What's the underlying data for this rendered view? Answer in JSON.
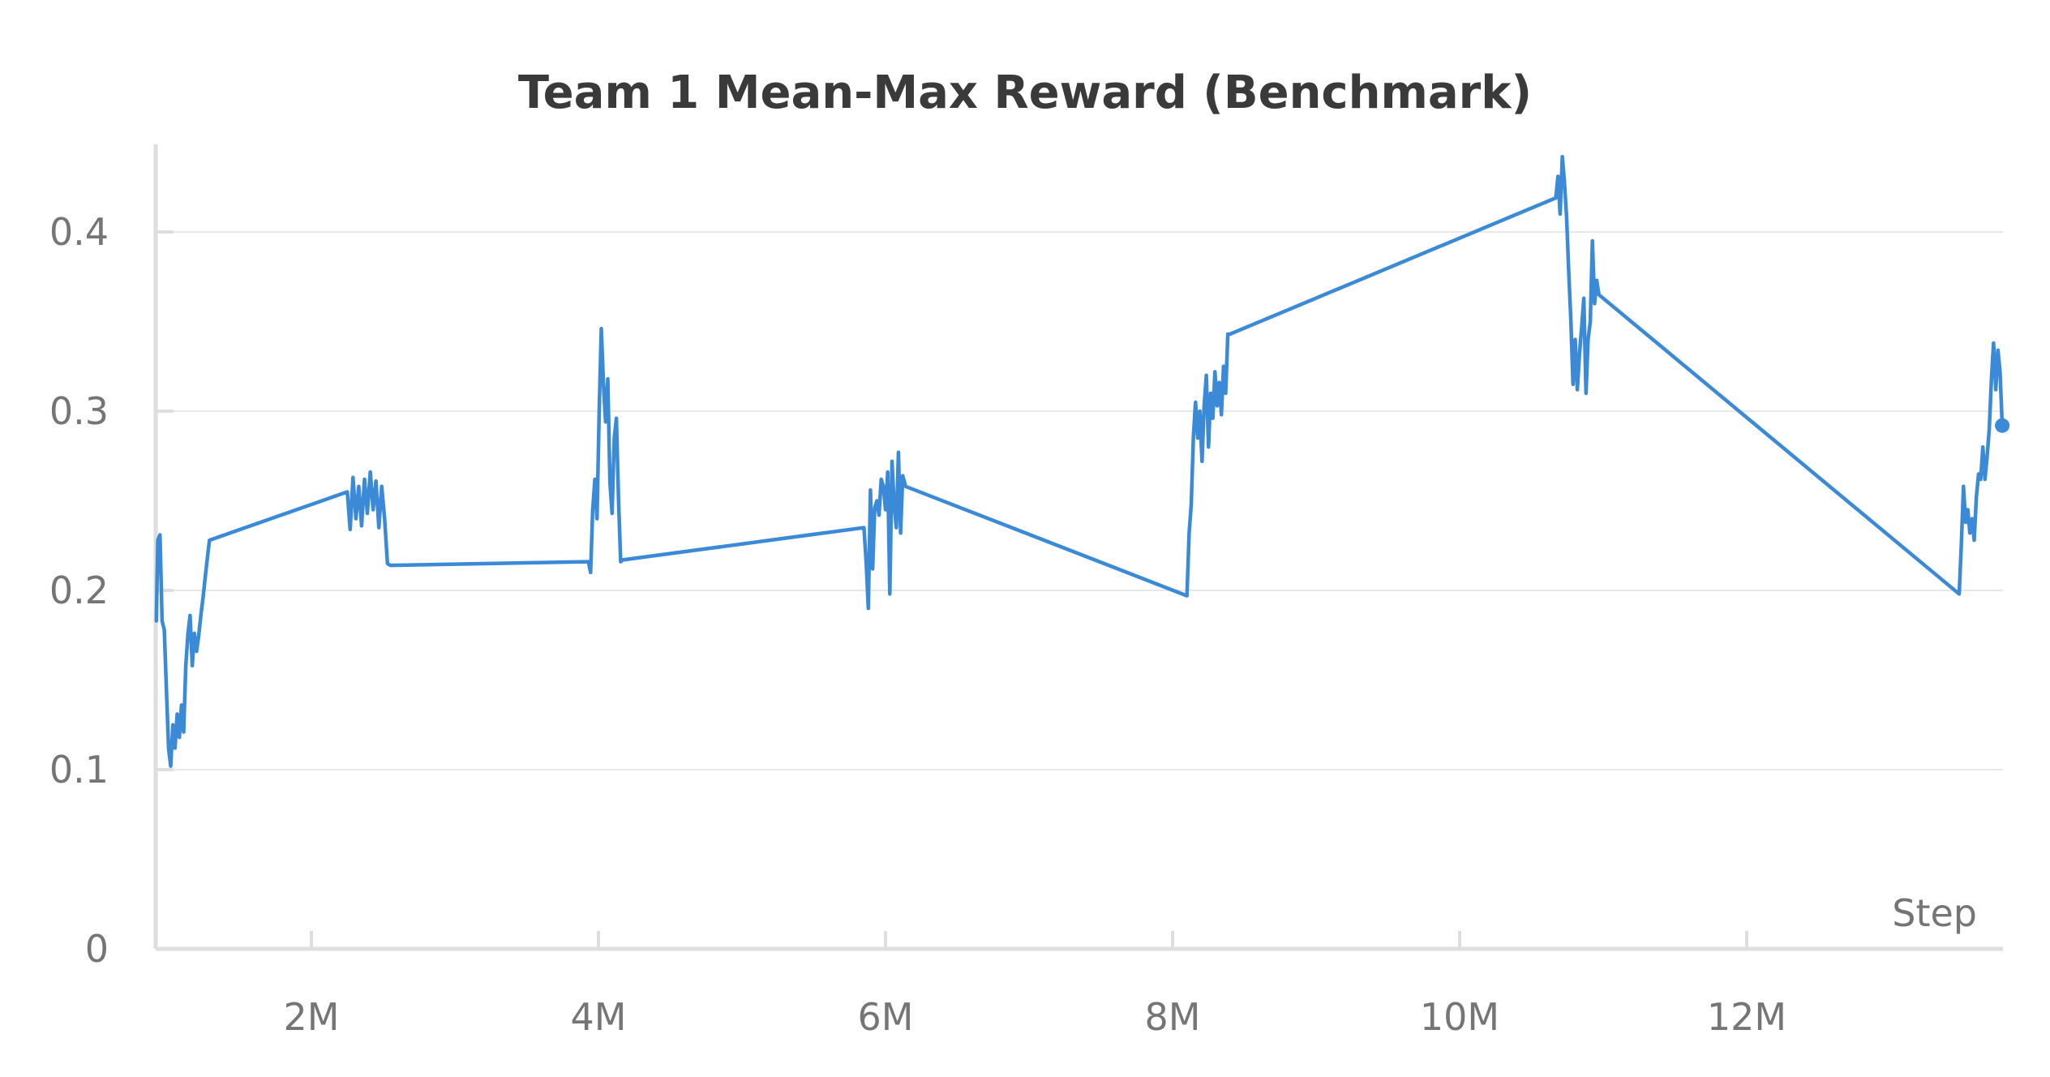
{
  "chart_data": {
    "type": "line",
    "title": "Team 1 Mean-Max Reward (Benchmark)",
    "xlabel": "Step",
    "ylabel": "",
    "xlim": [
      900000,
      13800000
    ],
    "ylim": [
      0,
      0.44
    ],
    "x_ticks": [
      {
        "value": 2000000,
        "label": "2M"
      },
      {
        "value": 4000000,
        "label": "4M"
      },
      {
        "value": 6000000,
        "label": "6M"
      },
      {
        "value": 8000000,
        "label": "8M"
      },
      {
        "value": 10000000,
        "label": "10M"
      },
      {
        "value": 12000000,
        "label": "12M"
      }
    ],
    "y_ticks": [
      {
        "value": 0,
        "label": "0"
      },
      {
        "value": 0.1,
        "label": "0.1"
      },
      {
        "value": 0.2,
        "label": "0.2"
      },
      {
        "value": 0.3,
        "label": "0.3"
      },
      {
        "value": 0.4,
        "label": "0.4"
      }
    ],
    "grid": true,
    "series": [
      {
        "color": "#3a8ad8",
        "x": [
          920000,
          930000,
          945000,
          960000,
          975000,
          990000,
          1005000,
          1020000,
          1035000,
          1050000,
          1065000,
          1080000,
          1095000,
          1110000,
          1125000,
          1140000,
          1155000,
          1170000,
          1185000,
          1200000,
          1215000,
          1230000,
          1245000,
          1260000,
          1275000,
          1290000,
          2250000,
          2270000,
          2290000,
          2310000,
          2330000,
          2350000,
          2370000,
          2390000,
          2410000,
          2430000,
          2450000,
          2470000,
          2490000,
          2510000,
          2530000,
          2550000,
          3930000,
          3945000,
          3960000,
          3975000,
          3990000,
          4005000,
          4020000,
          4035000,
          4050000,
          4065000,
          4080000,
          4095000,
          4110000,
          4125000,
          4140000,
          4155000,
          4170000,
          5850000,
          5865000,
          5880000,
          5895000,
          5910000,
          5925000,
          5940000,
          5955000,
          5970000,
          5985000,
          6000000,
          6015000,
          6030000,
          6045000,
          6060000,
          6075000,
          6090000,
          6105000,
          6120000,
          6140000,
          8100000,
          8115000,
          8130000,
          8145000,
          8160000,
          8175000,
          8190000,
          8205000,
          8220000,
          8235000,
          8250000,
          8265000,
          8280000,
          8295000,
          8310000,
          8325000,
          8340000,
          8355000,
          8370000,
          8385000,
          8400000,
          10670000,
          10685000,
          10700000,
          10715000,
          10730000,
          10745000,
          10760000,
          10775000,
          10790000,
          10805000,
          10820000,
          10835000,
          10850000,
          10865000,
          10880000,
          10895000,
          10910000,
          10925000,
          10940000,
          10955000,
          10970000,
          13480000,
          13495000,
          13510000,
          13525000,
          13540000,
          13555000,
          13570000,
          13585000,
          13600000,
          13615000,
          13630000,
          13645000,
          13660000,
          13675000,
          13690000,
          13705000,
          13720000,
          13735000,
          13750000,
          13765000,
          13780000
        ],
        "y": [
          0.183,
          0.228,
          0.231,
          0.183,
          0.178,
          0.145,
          0.112,
          0.102,
          0.125,
          0.112,
          0.131,
          0.118,
          0.136,
          0.121,
          0.158,
          0.176,
          0.186,
          0.158,
          0.176,
          0.166,
          0.175,
          0.186,
          0.196,
          0.207,
          0.218,
          0.228,
          0.255,
          0.234,
          0.263,
          0.24,
          0.258,
          0.236,
          0.262,
          0.243,
          0.266,
          0.245,
          0.261,
          0.235,
          0.258,
          0.24,
          0.215,
          0.214,
          0.216,
          0.21,
          0.245,
          0.262,
          0.24,
          0.3,
          0.346,
          0.315,
          0.294,
          0.318,
          0.26,
          0.243,
          0.285,
          0.296,
          0.25,
          0.216,
          0.217,
          0.235,
          0.216,
          0.19,
          0.256,
          0.212,
          0.246,
          0.25,
          0.242,
          0.262,
          0.258,
          0.245,
          0.266,
          0.198,
          0.272,
          0.248,
          0.235,
          0.277,
          0.232,
          0.264,
          0.258,
          0.197,
          0.232,
          0.248,
          0.286,
          0.305,
          0.285,
          0.3,
          0.272,
          0.303,
          0.32,
          0.28,
          0.31,
          0.296,
          0.322,
          0.303,
          0.316,
          0.298,
          0.325,
          0.31,
          0.343,
          0.343,
          0.419,
          0.431,
          0.41,
          0.442,
          0.428,
          0.408,
          0.378,
          0.35,
          0.315,
          0.34,
          0.312,
          0.332,
          0.347,
          0.363,
          0.31,
          0.34,
          0.35,
          0.395,
          0.36,
          0.373,
          0.365,
          0.198,
          0.225,
          0.258,
          0.238,
          0.245,
          0.232,
          0.24,
          0.228,
          0.252,
          0.265,
          0.262,
          0.28,
          0.262,
          0.275,
          0.29,
          0.318,
          0.338,
          0.312,
          0.334,
          0.322,
          0.292
        ]
      }
    ]
  }
}
